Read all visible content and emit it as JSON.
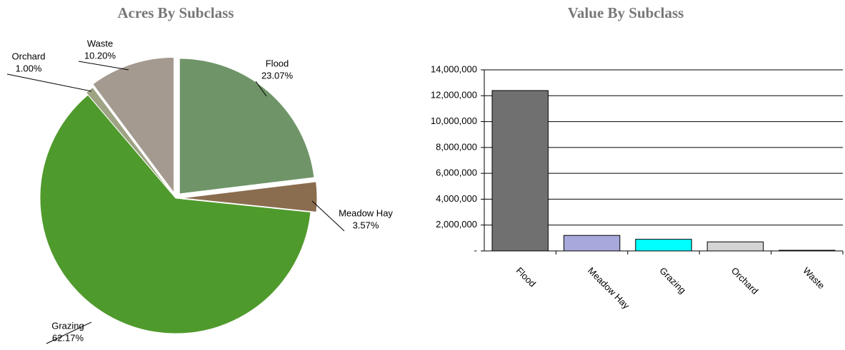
{
  "chart_data": [
    {
      "type": "pie",
      "title": "Acres By Subclass",
      "categories": [
        "Flood",
        "Meadow Hay",
        "Grazing",
        "Orchard",
        "Waste"
      ],
      "values": [
        23.07,
        3.57,
        62.17,
        1.0,
        10.2
      ],
      "value_labels": [
        "23.07%",
        "3.57%",
        "62.17%",
        "1.00%",
        "10.20%"
      ],
      "colors": [
        "#6f9468",
        "#8a6d4f",
        "#4f9a2c",
        "#9ea384",
        "#a49a90"
      ]
    },
    {
      "type": "bar",
      "title": "Value By Subclass",
      "categories": [
        "Flood",
        "Meadow Hay",
        "Grazing",
        "Orchard",
        "Waste"
      ],
      "values": [
        12400000,
        1200000,
        900000,
        700000,
        50000
      ],
      "colors": [
        "#707070",
        "#a8a8dc",
        "#00ffff",
        "#d4d4d4",
        "#333333"
      ],
      "ylim": [
        0,
        14000000
      ],
      "yticks": [
        {
          "value": 0,
          "label": "-"
        },
        {
          "value": 2000000,
          "label": "2,000,000"
        },
        {
          "value": 4000000,
          "label": "4,000,000"
        },
        {
          "value": 6000000,
          "label": "6,000,000"
        },
        {
          "value": 8000000,
          "label": "8,000,000"
        },
        {
          "value": 10000000,
          "label": "10,000,000"
        },
        {
          "value": 12000000,
          "label": "12,000,000"
        },
        {
          "value": 14000000,
          "label": "14,000,000"
        }
      ],
      "grid": true
    }
  ]
}
